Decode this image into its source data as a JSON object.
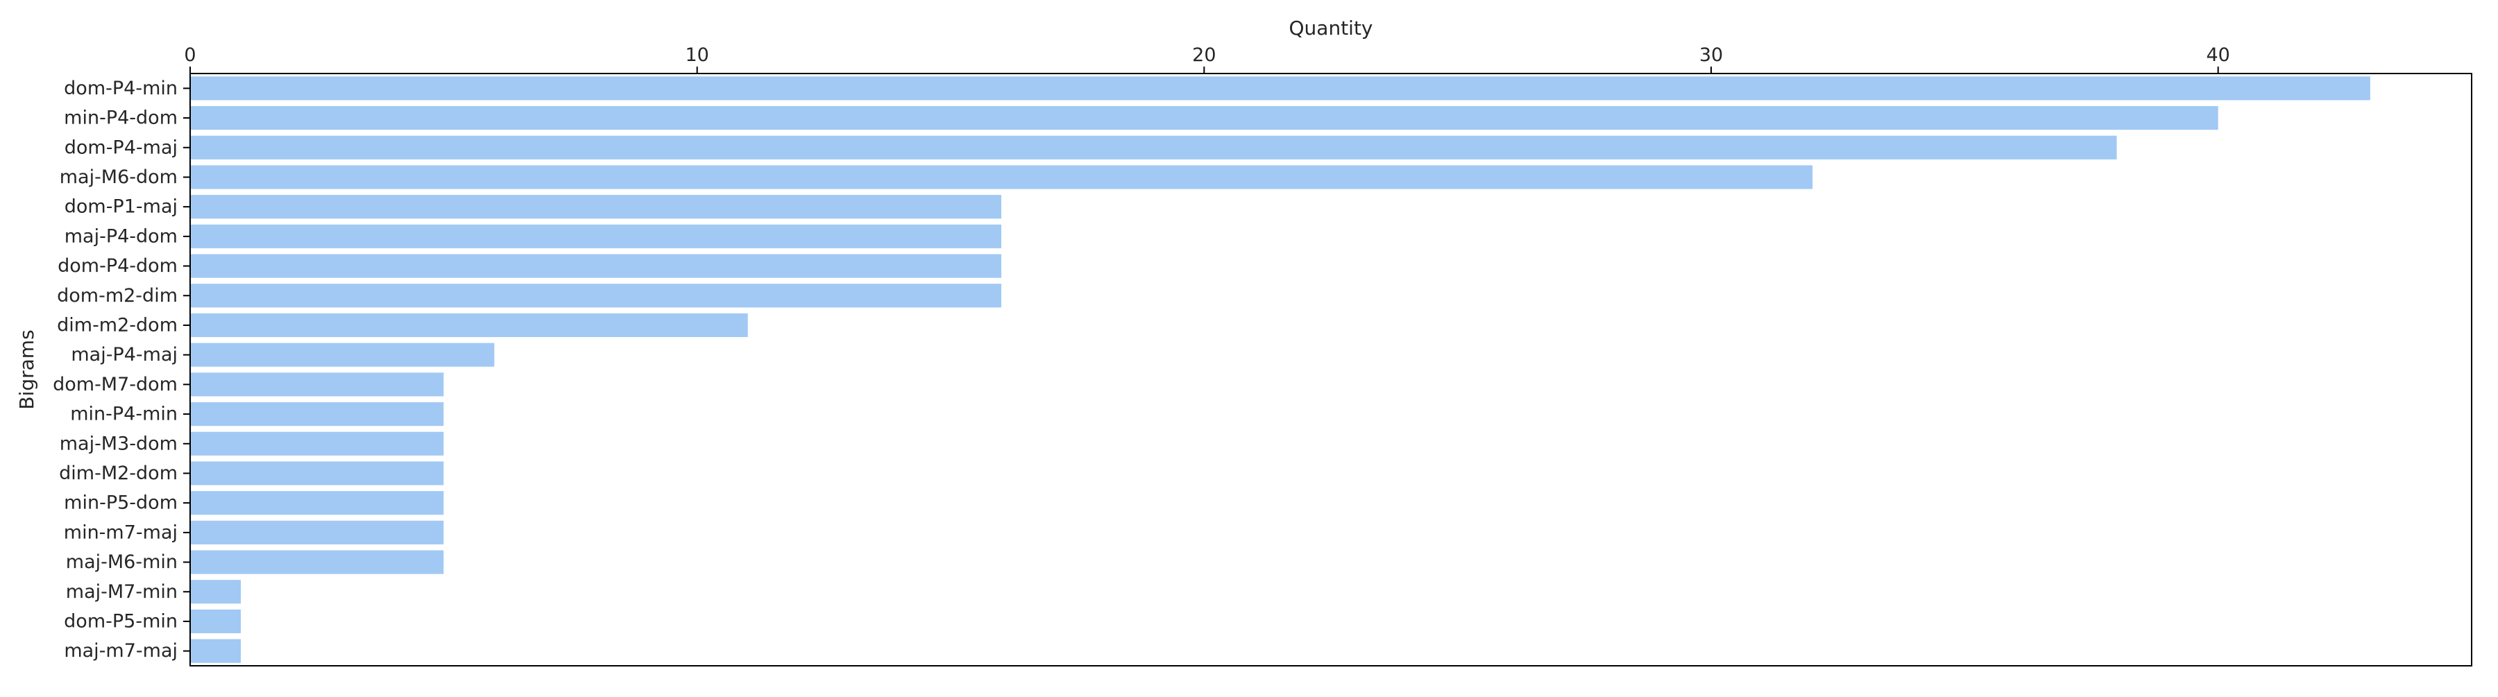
{
  "chart_data": {
    "type": "bar",
    "orientation": "horizontal",
    "xlabel": "Quantity",
    "ylabel": "Bigrams",
    "x_axis_position": "top",
    "xlim": [
      0,
      45
    ],
    "xticks": [
      0,
      10,
      20,
      30,
      40
    ],
    "grid": false,
    "bar_color": "#a1c9f4",
    "categories": [
      "dom-P4-min",
      "min-P4-dom",
      "dom-P4-maj",
      "maj-M6-dom",
      "dom-P1-maj",
      "maj-P4-dom",
      "dom-P4-dom",
      "dom-m2-dim",
      "dim-m2-dom",
      "maj-P4-maj",
      "dom-M7-dom",
      "min-P4-min",
      "maj-M3-dom",
      "dim-M2-dom",
      "min-P5-dom",
      "min-m7-maj",
      "maj-M6-min",
      "maj-M7-min",
      "dom-P5-min",
      "maj-m7-maj"
    ],
    "values": [
      43,
      40,
      38,
      32,
      16,
      16,
      16,
      16,
      11,
      6,
      5,
      5,
      5,
      5,
      5,
      5,
      5,
      1,
      1,
      1
    ]
  }
}
